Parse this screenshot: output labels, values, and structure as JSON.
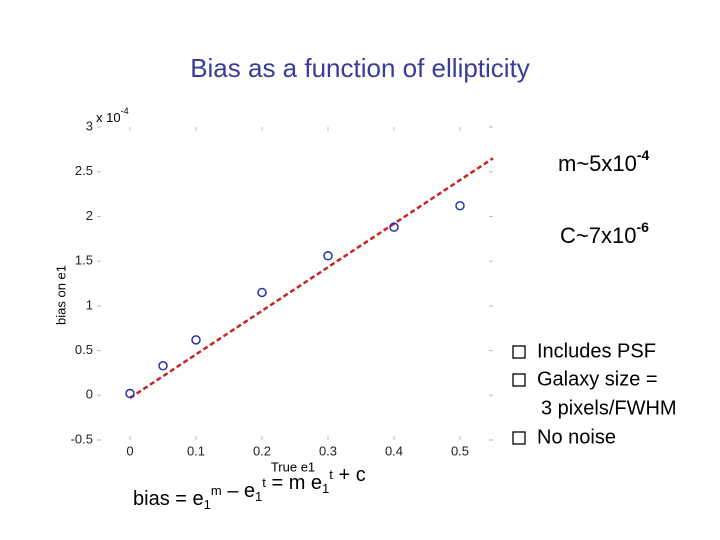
{
  "chart_data": {
    "type": "scatter",
    "title": "Bias as a function of ellipticity",
    "x_label": "True e1",
    "y_label": "bias on e1",
    "y_multiplier": {
      "base": "x 10",
      "exponent": "-4"
    },
    "xlim": [
      -0.05,
      0.55
    ],
    "ylim": [
      -0.5,
      3
    ],
    "xticks": [
      0,
      0.1,
      0.2,
      0.3,
      0.4,
      0.5
    ],
    "yticks": [
      -0.5,
      0,
      0.5,
      1,
      1.5,
      2,
      2.5,
      3
    ],
    "series": [
      {
        "color": "#2233aa",
        "x": [
          0,
          0.05,
          0.1,
          0.2,
          0.3,
          0.4,
          0.5
        ],
        "values": [
          0.02,
          0.33,
          0.62,
          1.15,
          1.56,
          1.88,
          2.12
        ]
      }
    ],
    "fit": {
      "color": "#cc2222",
      "x": [
        0,
        0.55
      ],
      "values": [
        -0.03,
        2.65
      ]
    },
    "annotations": {
      "slope": {
        "text": "m~5x10",
        "exponent": "-4"
      },
      "intercept": {
        "text": "C~7x10",
        "exponent": "-6"
      },
      "notes": [
        "Includes PSF",
        "Galaxy size =",
        "3 pixels/FWHM",
        "No noise"
      ],
      "formula": [
        [
          "bias = e",
          "1",
          "m"
        ],
        [
          " – e",
          "1",
          "t"
        ],
        [
          " = m e",
          "1",
          "t"
        ],
        [
          " + c"
        ]
      ]
    }
  }
}
